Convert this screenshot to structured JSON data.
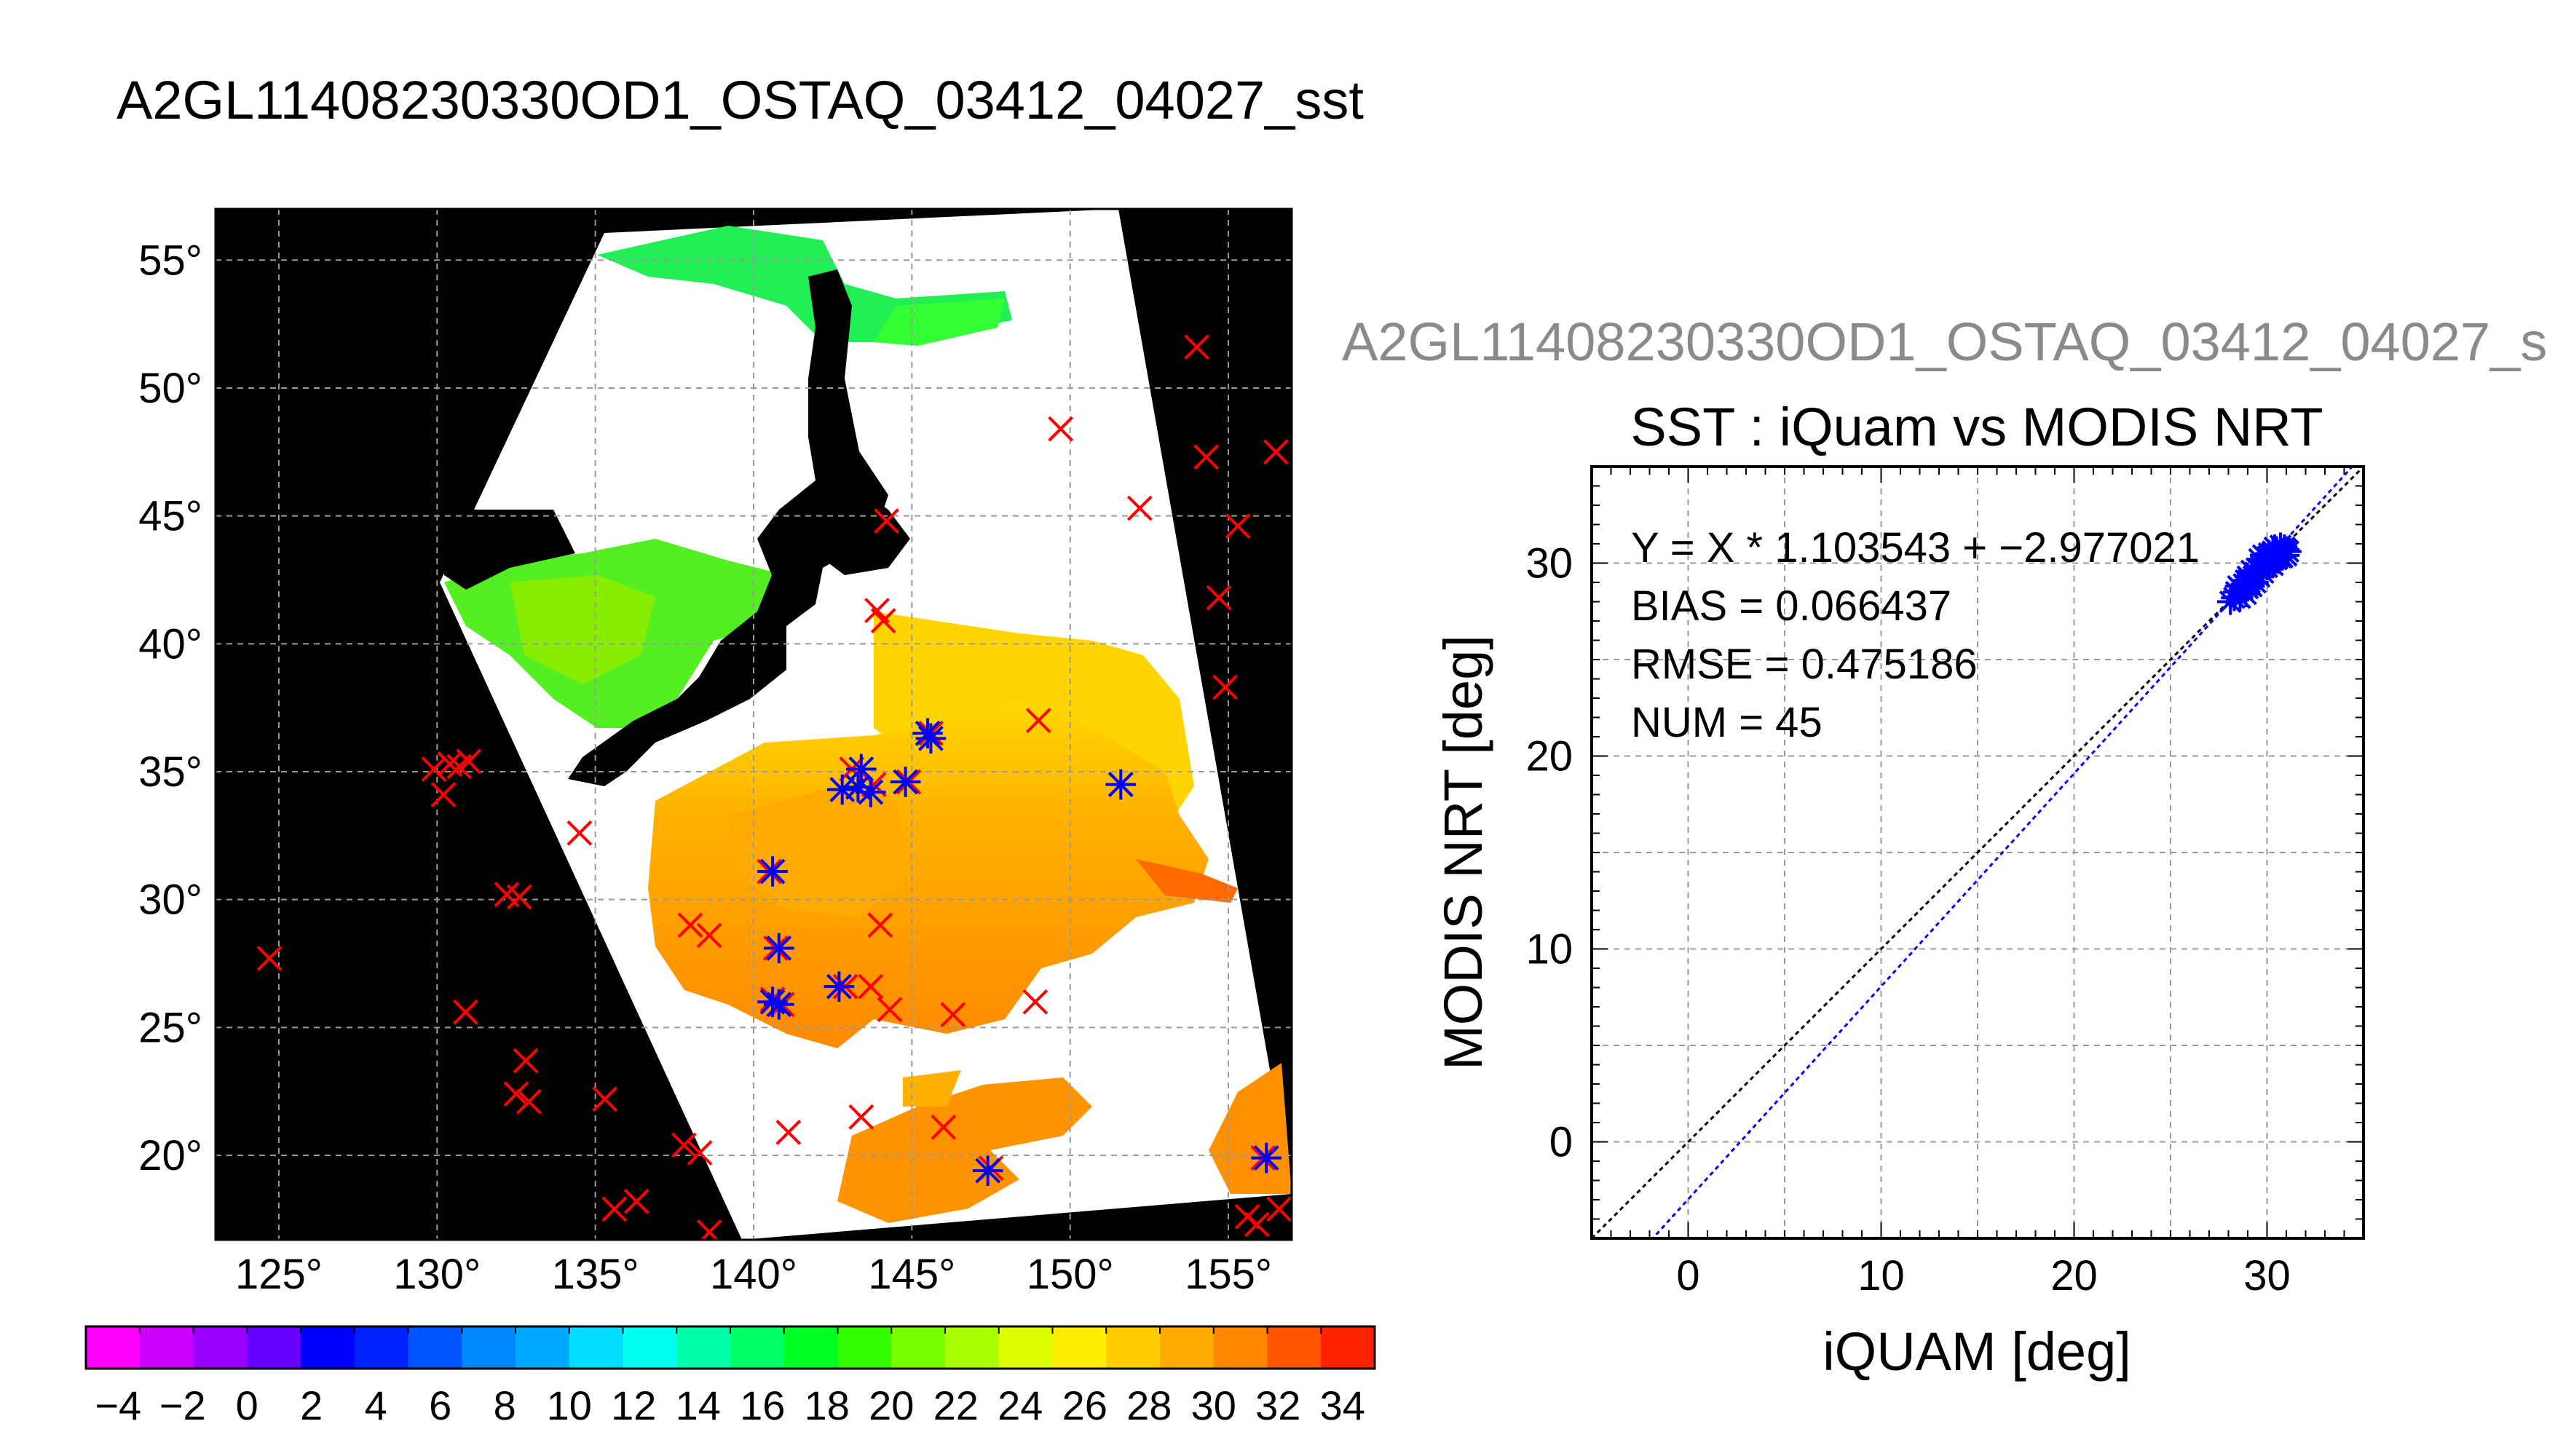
{
  "page": {
    "title": "A2GL11408230330OD1_OSTAQ_03412_04027_sst",
    "scatter_source_label": "A2GL11408230330OD1_OSTAQ_03412_04027_s"
  },
  "colors": {
    "ocean_mask": "#000000",
    "cloud": "#ffffff",
    "grid": "#9a9a9a",
    "iquam_marker": "#ff0000",
    "modis_marker": "#0000ff",
    "one_to_one_line": "#000000",
    "regression_line": "#0000ff"
  },
  "chart_data": [
    {
      "type": "map",
      "name": "sst-map",
      "lon_ticks": [
        "125°",
        "130°",
        "135°",
        "140°",
        "145°",
        "150°",
        "155°"
      ],
      "lat_ticks": [
        "20°",
        "25°",
        "30°",
        "35°",
        "40°",
        "45°",
        "50°",
        "55°"
      ],
      "lon_values": [
        125,
        130,
        135,
        140,
        145,
        150,
        155
      ],
      "lat_values": [
        20,
        25,
        30,
        35,
        40,
        45,
        50,
        55
      ],
      "xlim": [
        123,
        157
      ],
      "ylim": [
        16.7,
        57
      ],
      "iquam_points": [
        [
          124.7,
          27.7
        ],
        [
          129.9,
          35.1
        ],
        [
          130.2,
          34.1
        ],
        [
          130.4,
          35.3
        ],
        [
          130.7,
          35.2
        ],
        [
          131.0,
          35.4
        ],
        [
          130.9,
          25.6
        ],
        [
          132.2,
          30.2
        ],
        [
          132.6,
          30.1
        ],
        [
          132.5,
          22.4
        ],
        [
          132.9,
          22.1
        ],
        [
          132.8,
          23.7
        ],
        [
          134.5,
          32.6
        ],
        [
          135.3,
          22.2
        ],
        [
          135.6,
          17.9
        ],
        [
          136.3,
          18.2
        ],
        [
          137.8,
          20.4
        ],
        [
          138.3,
          20.1
        ],
        [
          138.0,
          29.0
        ],
        [
          138.6,
          28.6
        ],
        [
          138.6,
          17.0
        ],
        [
          140.5,
          31.1
        ],
        [
          140.7,
          28.1
        ],
        [
          140.6,
          26.1
        ],
        [
          140.9,
          25.9
        ],
        [
          141.1,
          20.9
        ],
        [
          142.9,
          26.6
        ],
        [
          143.4,
          21.5
        ],
        [
          143.7,
          26.6
        ],
        [
          144.0,
          29.0
        ],
        [
          144.3,
          25.7
        ],
        [
          143.8,
          34.5
        ],
        [
          143.1,
          35.1
        ],
        [
          143.9,
          41.3
        ],
        [
          144.1,
          40.9
        ],
        [
          144.2,
          44.8
        ],
        [
          144.9,
          34.6
        ],
        [
          145.6,
          36.5
        ],
        [
          146.0,
          21.1
        ],
        [
          146.3,
          25.5
        ],
        [
          147.5,
          19.5
        ],
        [
          148.9,
          26.0
        ],
        [
          149.0,
          37.0
        ],
        [
          149.7,
          48.4
        ],
        [
          151.6,
          34.5
        ],
        [
          152.2,
          45.3
        ],
        [
          154.0,
          51.6
        ],
        [
          154.3,
          47.3
        ],
        [
          154.9,
          38.3
        ],
        [
          154.7,
          41.8
        ],
        [
          155.3,
          44.6
        ],
        [
          156.5,
          47.5
        ],
        [
          156.1,
          19.9
        ],
        [
          155.6,
          17.6
        ],
        [
          155.9,
          17.3
        ],
        [
          156.6,
          17.9
        ]
      ],
      "modis_points": [
        [
          140.6,
          31.1
        ],
        [
          140.8,
          28.1
        ],
        [
          140.6,
          26.0
        ],
        [
          140.8,
          25.9
        ],
        [
          142.7,
          26.6
        ],
        [
          142.8,
          34.3
        ],
        [
          143.3,
          34.4
        ],
        [
          143.4,
          35.1
        ],
        [
          143.7,
          34.2
        ],
        [
          144.8,
          34.6
        ],
        [
          145.5,
          36.5
        ],
        [
          145.6,
          36.3
        ],
        [
          151.6,
          34.5
        ],
        [
          147.4,
          19.4
        ],
        [
          156.2,
          19.9
        ]
      ]
    },
    {
      "type": "scatter",
      "name": "iquam-vs-modis",
      "title": "SST : iQuam vs MODIS NRT",
      "xlabel": "iQUAM [deg]",
      "ylabel": "MODIS NRT [deg]",
      "xlim": [
        -5,
        35
      ],
      "ylim": [
        -5,
        35
      ],
      "x_ticks": [
        0,
        10,
        20,
        30
      ],
      "y_ticks": [
        0,
        10,
        20,
        30
      ],
      "annotations": [
        "Y = X * 1.103543 + −2.977021",
        "BIAS = 0.066437",
        "RMSE = 0.475186",
        "NUM = 45"
      ],
      "regression": {
        "slope": 1.103543,
        "intercept": -2.977021
      },
      "points": [
        [
          28.1,
          28.0
        ],
        [
          28.3,
          28.2
        ],
        [
          28.4,
          28.5
        ],
        [
          28.6,
          28.2
        ],
        [
          28.7,
          28.6
        ],
        [
          28.8,
          28.9
        ],
        [
          28.9,
          28.4
        ],
        [
          29.0,
          28.7
        ],
        [
          29.1,
          29.0
        ],
        [
          29.2,
          28.8
        ],
        [
          29.3,
          29.3
        ],
        [
          29.4,
          29.5
        ],
        [
          29.4,
          29.0
        ],
        [
          29.5,
          29.7
        ],
        [
          29.6,
          29.3
        ],
        [
          29.7,
          29.8
        ],
        [
          29.7,
          30.1
        ],
        [
          29.8,
          29.5
        ],
        [
          29.9,
          30.0
        ],
        [
          30.0,
          30.3
        ],
        [
          30.0,
          29.8
        ],
        [
          30.1,
          30.5
        ],
        [
          30.2,
          30.2
        ],
        [
          30.3,
          30.6
        ],
        [
          30.3,
          29.9
        ],
        [
          30.4,
          30.4
        ],
        [
          30.5,
          30.7
        ],
        [
          30.5,
          30.2
        ],
        [
          30.6,
          30.5
        ],
        [
          30.7,
          30.9
        ],
        [
          30.7,
          30.3
        ],
        [
          30.8,
          30.6
        ],
        [
          30.9,
          30.8
        ],
        [
          31.0,
          30.4
        ],
        [
          31.0,
          30.7
        ],
        [
          29.0,
          29.3
        ],
        [
          29.2,
          29.6
        ],
        [
          28.5,
          28.8
        ],
        [
          29.6,
          30.2
        ],
        [
          30.1,
          30.0
        ],
        [
          30.8,
          30.3
        ],
        [
          31.1,
          30.6
        ],
        [
          29.8,
          30.4
        ],
        [
          28.9,
          29.1
        ],
        [
          30.4,
          30.8
        ]
      ]
    },
    {
      "type": "colorbar",
      "name": "sst-colorbar",
      "range": [
        -5,
        35
      ],
      "step": 2,
      "tick_labels": [
        "−4",
        "−2",
        "0",
        "2",
        "4",
        "6",
        "8",
        "10",
        "12",
        "14",
        "16",
        "18",
        "20",
        "22",
        "24",
        "26",
        "28",
        "30",
        "32",
        "34"
      ],
      "tick_values": [
        -4,
        -2,
        0,
        2,
        4,
        6,
        8,
        10,
        12,
        14,
        16,
        18,
        20,
        22,
        24,
        26,
        28,
        30,
        32,
        34
      ],
      "colors": [
        "#ff00ff",
        "#cc00ff",
        "#9900ff",
        "#6600ff",
        "#0000ff",
        "#0022ff",
        "#0055ff",
        "#0088ff",
        "#00aaff",
        "#00ddff",
        "#00ffee",
        "#00ffaa",
        "#00ff66",
        "#00ff22",
        "#33ff00",
        "#77ff00",
        "#aaff00",
        "#ddff00",
        "#ffee00",
        "#ffcc00",
        "#ffaa00",
        "#ff8800",
        "#ff5500",
        "#ff2200"
      ]
    }
  ]
}
